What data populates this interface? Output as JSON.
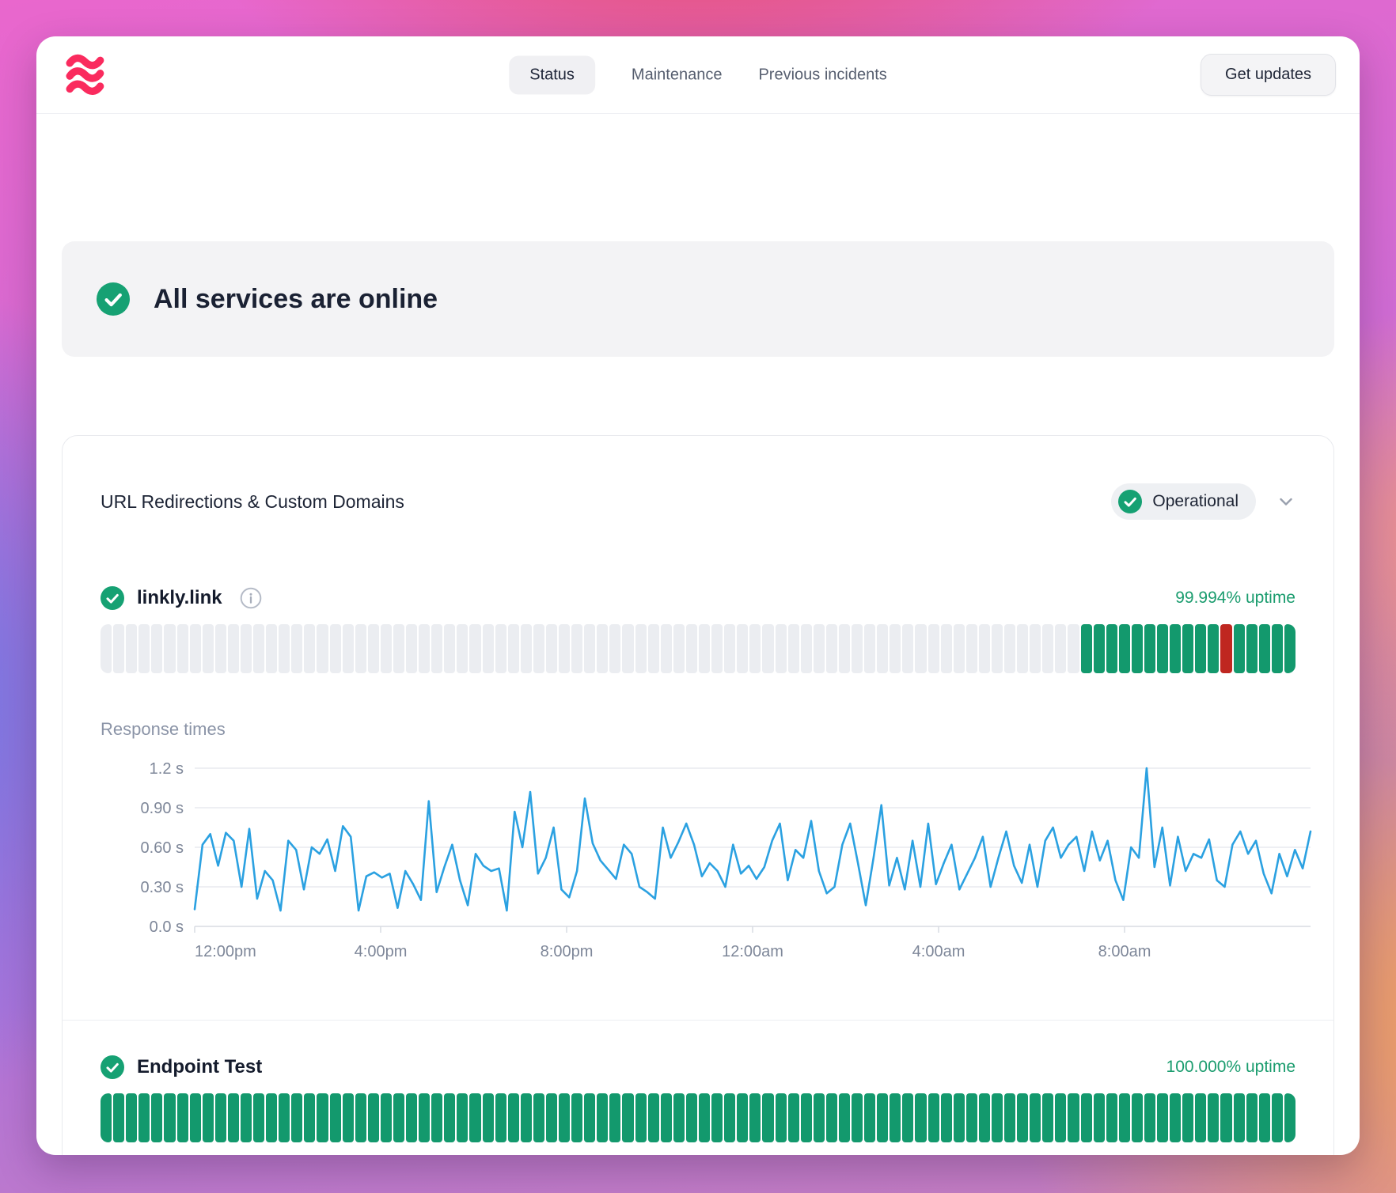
{
  "nav": {
    "tabs": [
      {
        "label": "Status",
        "active": true
      },
      {
        "label": "Maintenance",
        "active": false
      },
      {
        "label": "Previous incidents",
        "active": false
      }
    ],
    "get_updates_label": "Get updates"
  },
  "banner": {
    "text": "All services are online",
    "status_icon": "check-circle"
  },
  "section": {
    "title": "URL Redirections & Custom Domains",
    "status_badge": "Operational",
    "response_times_label": "Response times",
    "services": [
      {
        "name": "linkly.link",
        "uptime": "99.994% uptime",
        "uptime_bar": {
          "total_segments": 94,
          "pattern": [
            [
              "empty",
              77
            ],
            [
              "up",
              11
            ],
            [
              "down",
              1
            ],
            [
              "up",
              5
            ]
          ]
        }
      },
      {
        "name": "Endpoint Test",
        "uptime": "100.000% uptime",
        "uptime_bar": {
          "total_segments": 94,
          "pattern": [
            [
              "up",
              94
            ]
          ]
        }
      }
    ]
  },
  "chart_data": {
    "type": "line",
    "title": "Response times",
    "ylabel": "seconds",
    "ylim": [
      0,
      1.2
    ],
    "grid": true,
    "line_color": "#2ba1e1",
    "yticks": [
      {
        "value": 1.2,
        "label": "1.2 s"
      },
      {
        "value": 0.9,
        "label": "0.90 s"
      },
      {
        "value": 0.6,
        "label": "0.60 s"
      },
      {
        "value": 0.3,
        "label": "0.30 s"
      },
      {
        "value": 0.0,
        "label": "0.0 s"
      }
    ],
    "xticks": [
      "12:00pm",
      "4:00pm",
      "8:00pm",
      "12:00am",
      "4:00am",
      "8:00am"
    ],
    "x_span_hours": 24,
    "values": [
      0.13,
      0.62,
      0.7,
      0.46,
      0.71,
      0.65,
      0.3,
      0.74,
      0.21,
      0.42,
      0.35,
      0.12,
      0.65,
      0.58,
      0.28,
      0.6,
      0.55,
      0.66,
      0.42,
      0.76,
      0.68,
      0.12,
      0.38,
      0.41,
      0.37,
      0.4,
      0.14,
      0.42,
      0.32,
      0.2,
      0.95,
      0.26,
      0.45,
      0.62,
      0.35,
      0.16,
      0.55,
      0.46,
      0.42,
      0.44,
      0.12,
      0.87,
      0.6,
      1.02,
      0.4,
      0.52,
      0.75,
      0.28,
      0.22,
      0.42,
      0.97,
      0.63,
      0.5,
      0.43,
      0.36,
      0.62,
      0.55,
      0.3,
      0.26,
      0.21,
      0.75,
      0.52,
      0.64,
      0.78,
      0.62,
      0.38,
      0.48,
      0.42,
      0.3,
      0.62,
      0.4,
      0.46,
      0.36,
      0.45,
      0.65,
      0.78,
      0.35,
      0.58,
      0.52,
      0.8,
      0.42,
      0.25,
      0.3,
      0.62,
      0.78,
      0.48,
      0.16,
      0.52,
      0.92,
      0.31,
      0.52,
      0.28,
      0.65,
      0.3,
      0.78,
      0.32,
      0.48,
      0.62,
      0.28,
      0.4,
      0.52,
      0.68,
      0.3,
      0.52,
      0.72,
      0.46,
      0.33,
      0.62,
      0.3,
      0.65,
      0.75,
      0.52,
      0.62,
      0.68,
      0.42,
      0.72,
      0.5,
      0.65,
      0.35,
      0.2,
      0.6,
      0.52,
      1.2,
      0.45,
      0.75,
      0.31,
      0.68,
      0.42,
      0.55,
      0.52,
      0.66,
      0.35,
      0.3,
      0.62,
      0.72,
      0.55,
      0.65,
      0.4,
      0.25,
      0.55,
      0.38,
      0.58,
      0.44,
      0.72
    ]
  },
  "colors": {
    "status_green": "#16a173",
    "uptime_green": "#13996d",
    "uptime_red": "#bf2720",
    "uptime_empty": "#ebedf1",
    "chart_line_blue": "#2ba1e1",
    "logo_red": "#fa2b5e",
    "uptime_text_green": "#1a9c6e"
  }
}
